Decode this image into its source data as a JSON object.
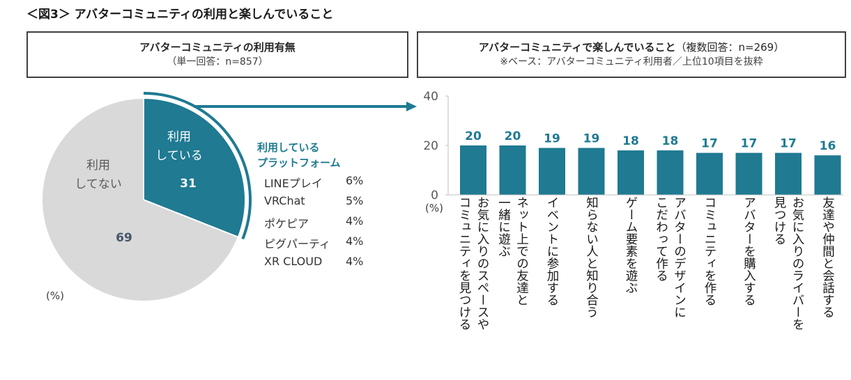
{
  "figure_title": "＜図3＞ アバターコミュニティの利用と楽しんでいること",
  "left_panel": {
    "title": "アバターコミュニティの利用有無",
    "subtitle": "（単一回答：n=857）",
    "unit": "(%)",
    "platforms_title_line1": "利用している",
    "platforms_title_line2": "プラットフォーム",
    "platforms": [
      {
        "name": "LINEプレイ",
        "value": "6%"
      },
      {
        "name": "VRChat",
        "value": "5%"
      },
      {
        "name": "ポケピア",
        "value": "4%"
      },
      {
        "name": "ピグパーティ",
        "value": "4%"
      },
      {
        "name": "XR CLOUD",
        "value": "4%"
      }
    ]
  },
  "right_panel": {
    "title": "アバターコミュニティで楽しんでいること",
    "title_suffix": "（複数回答：n=269）",
    "subtitle": "※ベース：アバターコミュニティ利用者／上位10項目を抜粋",
    "unit": "(%)"
  },
  "colors": {
    "accent": "#1f7a92",
    "grey": "#d9d9d9",
    "text_dark": "#404040"
  },
  "chart_data": [
    {
      "type": "pie",
      "slices": [
        {
          "label_line1": "利用",
          "label_line2": "している",
          "value": 31,
          "color": "#1f7a92"
        },
        {
          "label_line1": "利用",
          "label_line2": "してない",
          "value": 69,
          "color": "#d9d9d9"
        }
      ],
      "unit": "%"
    },
    {
      "type": "bar",
      "categories": [
        "お気に入りのスペースやコミュニティを見つける",
        "ネット上での友達と一緒に遊ぶ",
        "イベントに参加する",
        "知らない人と知り合う",
        "ゲーム要素を遊ぶ",
        "アバターのデザインにこだわって作る",
        "コミュニティを作る",
        "アバターを購入する",
        "お気に入りのライバーを見つける",
        "友達や仲間と会話する"
      ],
      "category_lines": [
        [
          "お気に入りのスペースや",
          "コミュニティを見つける"
        ],
        [
          "ネット上での友達と",
          "一緒に遊ぶ"
        ],
        [
          "イベントに参加する"
        ],
        [
          "知らない人と知り合う"
        ],
        [
          "ゲーム要素を遊ぶ"
        ],
        [
          "アバターのデザインに",
          "こだわって作る"
        ],
        [
          "コミュニティを作る"
        ],
        [
          "アバターを購入する"
        ],
        [
          "お気に入りのライバーを",
          "見つける"
        ],
        [
          "友達や仲間と会話する"
        ]
      ],
      "values": [
        20,
        20,
        19,
        19,
        18,
        18,
        17,
        17,
        17,
        16
      ],
      "ylim": [
        0,
        40
      ],
      "yticks": [
        0,
        20,
        40
      ],
      "ylabel": "(%)",
      "color": "#1f7a92"
    }
  ]
}
